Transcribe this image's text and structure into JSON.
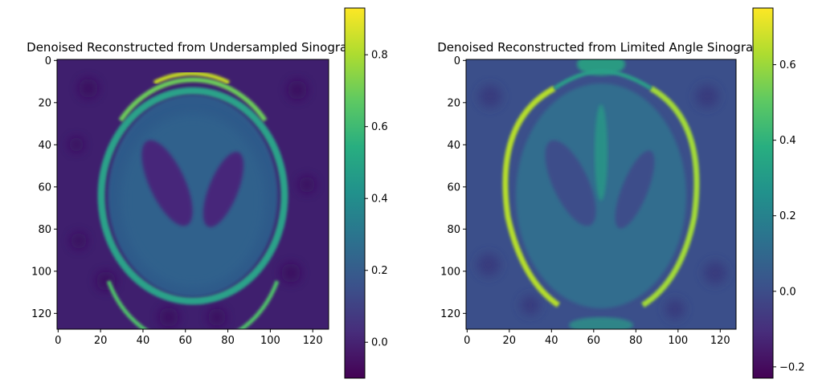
{
  "chart_data": [
    {
      "type": "heatmap",
      "title": "Denoised Reconstructed from Undersampled Sinogram",
      "image_shape": [
        128,
        128
      ],
      "colormap": "viridis",
      "x_ticks": [
        0,
        20,
        40,
        60,
        80,
        100,
        120
      ],
      "y_ticks": [
        0,
        20,
        40,
        60,
        80,
        100,
        120
      ],
      "xlim": [
        -0.5,
        127.5
      ],
      "ylim": [
        127.5,
        -0.5
      ],
      "colorbar": {
        "vmin": -0.1,
        "vmax": 0.93,
        "ticks": [
          0.0,
          0.2,
          0.4,
          0.6,
          0.8
        ],
        "tick_labels": [
          "0.0",
          "0.2",
          "0.4",
          "0.6",
          "0.8"
        ]
      },
      "content": "Shepp-Logan phantom: bright elliptical skull ring (~0.45-0.9), interior ~0.25, two dark ventricles (~0.0), background ~0.05"
    },
    {
      "type": "heatmap",
      "title": "Denoised Reconstructed from Limited Angle Sinogram",
      "image_shape": [
        128,
        128
      ],
      "colormap": "viridis",
      "x_ticks": [
        0,
        20,
        40,
        60,
        80,
        100,
        120
      ],
      "y_ticks": [
        0,
        20,
        40,
        60,
        80,
        100,
        120
      ],
      "xlim": [
        -0.5,
        127.5
      ],
      "ylim": [
        127.5,
        -0.5
      ],
      "colorbar": {
        "vmin": -0.23,
        "vmax": 0.75,
        "ticks": [
          -0.2,
          0.0,
          0.2,
          0.4,
          0.6
        ],
        "tick_labels": [
          "−0.2",
          "0.0",
          "0.2",
          "0.4",
          "0.6"
        ]
      },
      "content": "Shepp-Logan phantom with limited-angle artifacts: bright side walls (~0.65), faint top/bottom, interior ~0.2, background ~0.05"
    }
  ]
}
